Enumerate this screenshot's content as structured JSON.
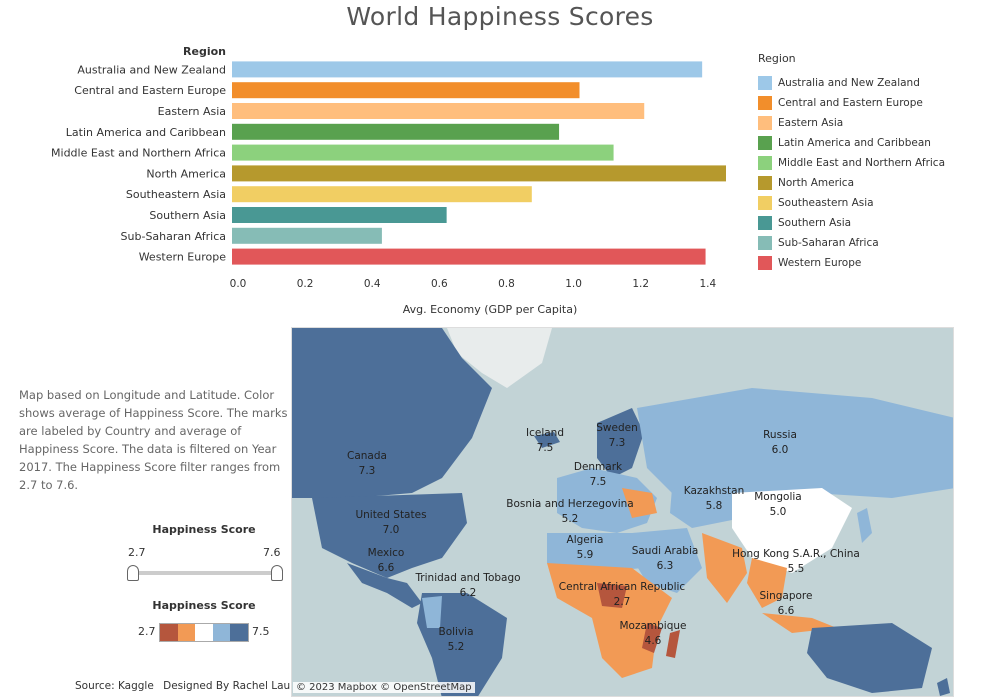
{
  "title": "World Happiness Scores",
  "chart_data": {
    "type": "bar",
    "orientation": "horizontal",
    "categories": [
      "Australia and New Zealand",
      "Central and Eastern Europe",
      "Eastern Asia",
      "Latin America and Caribbean",
      "Middle East and Northern Africa",
      "North America",
      "Southeastern Asia",
      "Southern Asia",
      "Sub-Saharan Africa",
      "Western Europe"
    ],
    "values": [
      1.38,
      1.02,
      1.21,
      0.96,
      1.12,
      1.45,
      0.88,
      0.63,
      0.44,
      1.39
    ],
    "colors": [
      "#9dc8e8",
      "#f28e2b",
      "#ffbe7d",
      "#59a14f",
      "#8cd17d",
      "#b6992d",
      "#f1ce63",
      "#499894",
      "#86bcb6",
      "#e15759"
    ],
    "ylabel": "Region",
    "xlabel": "Avg. Economy (GDP per Capita)",
    "xlim": [
      0,
      1.45
    ],
    "xticks": [
      "0.0",
      "0.2",
      "0.4",
      "0.6",
      "0.8",
      "1.0",
      "1.2",
      "1.4"
    ],
    "legend_title": "Region",
    "legend_position": "right"
  },
  "description": "Map based on Longitude and Latitude.  Color shows average of Happiness Score.  The marks are labeled by Country and average of Happiness Score. The data is filtered on Year 2017. The Happiness Score filter ranges from 2.7 to 7.6.",
  "filter": {
    "label": "Happiness Score",
    "min": "2.7",
    "max": "7.6"
  },
  "color_scale": {
    "label": "Happiness Score",
    "min": "2.7",
    "max": "7.5",
    "colors": [
      "#b5563d",
      "#f29a55",
      "#ffffff",
      "#8fb6d8",
      "#4d6f99"
    ]
  },
  "footer": {
    "source": "Source: Kaggle",
    "credit": "Designed By Rachel Lau"
  },
  "map": {
    "copyright": "© 2023 Mapbox  © OpenStreetMap",
    "labels": [
      {
        "country": "Canada",
        "score": "7.3"
      },
      {
        "country": "United States",
        "score": "7.0"
      },
      {
        "country": "Mexico",
        "score": "6.6"
      },
      {
        "country": "Trinidad and Tobago",
        "score": "6.2"
      },
      {
        "country": "Bolivia",
        "score": "5.2"
      },
      {
        "country": "Iceland",
        "score": "7.5"
      },
      {
        "country": "Sweden",
        "score": "7.3"
      },
      {
        "country": "Denmark",
        "score": "7.5"
      },
      {
        "country": "Bosnia and Herzegovina",
        "score": "5.2"
      },
      {
        "country": "Algeria",
        "score": "5.9"
      },
      {
        "country": "Central African Republic",
        "score": "2.7"
      },
      {
        "country": "Mozambique",
        "score": "4.6"
      },
      {
        "country": "Saudi Arabia",
        "score": "6.3"
      },
      {
        "country": "Russia",
        "score": "6.0"
      },
      {
        "country": "Kazakhstan",
        "score": "5.8"
      },
      {
        "country": "Mongolia",
        "score": "5.0"
      },
      {
        "country": "Hong Kong S.A.R., China",
        "score": "5.5"
      },
      {
        "country": "Singapore",
        "score": "6.6"
      }
    ]
  }
}
